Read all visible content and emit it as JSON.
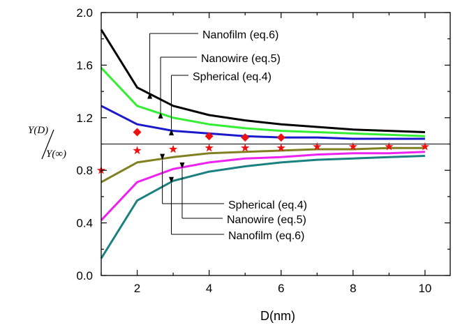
{
  "chart_data": {
    "type": "line",
    "xlabel": "D(nm)",
    "ylabel": {
      "numerator": "Y(D)",
      "denominator": "Y(∞)"
    },
    "xlim": [
      1,
      10.7
    ],
    "ylim": [
      0.0,
      2.0
    ],
    "xticks": [
      2,
      4,
      6,
      8,
      10
    ],
    "yticks": [
      0.0,
      0.4,
      0.8,
      1.2,
      1.6,
      2.0
    ],
    "reference_line": 1.0,
    "grid": false,
    "series": [
      {
        "label": "Nanofilm (eq.6)",
        "color": "#000000",
        "x": [
          1,
          2,
          3,
          4,
          5,
          6,
          7,
          8,
          9,
          10
        ],
        "y": [
          1.87,
          1.43,
          1.29,
          1.22,
          1.18,
          1.15,
          1.13,
          1.11,
          1.1,
          1.09
        ]
      },
      {
        "label": "Nanowire (eq.5)",
        "color": "#33ee33",
        "x": [
          1,
          2,
          3,
          4,
          5,
          6,
          7,
          8,
          9,
          10
        ],
        "y": [
          1.58,
          1.29,
          1.2,
          1.15,
          1.12,
          1.1,
          1.09,
          1.08,
          1.07,
          1.06
        ]
      },
      {
        "label": "Spherical (eq.4)",
        "color": "#1a1acc",
        "x": [
          1,
          2,
          3,
          4,
          5,
          6,
          7,
          8,
          9,
          10
        ],
        "y": [
          1.29,
          1.15,
          1.1,
          1.08,
          1.06,
          1.05,
          1.05,
          1.04,
          1.04,
          1.04
        ]
      },
      {
        "label": "Spherical (eq.4)",
        "color": "#808020",
        "x": [
          1,
          2,
          3,
          4,
          5,
          6,
          7,
          8,
          9,
          10
        ],
        "y": [
          0.71,
          0.86,
          0.9,
          0.93,
          0.94,
          0.95,
          0.96,
          0.96,
          0.97,
          0.97
        ]
      },
      {
        "label": "Nanowire (eq.5)",
        "color": "#ee22ee",
        "x": [
          1,
          2,
          3,
          4,
          5,
          6,
          7,
          8,
          9,
          10
        ],
        "y": [
          0.42,
          0.71,
          0.81,
          0.86,
          0.89,
          0.9,
          0.92,
          0.93,
          0.93,
          0.94
        ]
      },
      {
        "label": "Nanofilm (eq.6)",
        "color": "#1a8080",
        "x": [
          1,
          2,
          3,
          4,
          5,
          6,
          7,
          8,
          9,
          10
        ],
        "y": [
          0.13,
          0.57,
          0.72,
          0.79,
          0.83,
          0.86,
          0.88,
          0.89,
          0.9,
          0.91
        ]
      }
    ],
    "markers": [
      {
        "shape": "diamond",
        "color": "#ee1111",
        "x": [
          2,
          4,
          5,
          6
        ],
        "y": [
          1.09,
          1.06,
          1.05,
          1.05
        ]
      },
      {
        "shape": "star",
        "color": "#ee1111",
        "x": [
          1,
          2,
          3,
          4,
          5,
          6,
          7,
          8,
          9,
          10
        ],
        "y": [
          0.8,
          0.95,
          0.96,
          0.97,
          0.97,
          0.97,
          0.98,
          0.98,
          0.98,
          0.98
        ]
      }
    ],
    "annotations": [
      {
        "text": "Nanofilm (eq.6)",
        "series_index": 0,
        "point_x": 2.35
      },
      {
        "text": "Nanowire (eq.5)",
        "series_index": 1,
        "point_x": 2.65
      },
      {
        "text": "Spherical (eq.4)",
        "series_index": 2,
        "point_x": 2.95
      },
      {
        "text": "Spherical (eq.4)",
        "series_index": 3,
        "point_x": 2.7
      },
      {
        "text": "Nanowire (eq.5)",
        "series_index": 4,
        "point_x": 3.25
      },
      {
        "text": "Nanofilm (eq.6)",
        "series_index": 5,
        "point_x": 2.95
      }
    ]
  }
}
